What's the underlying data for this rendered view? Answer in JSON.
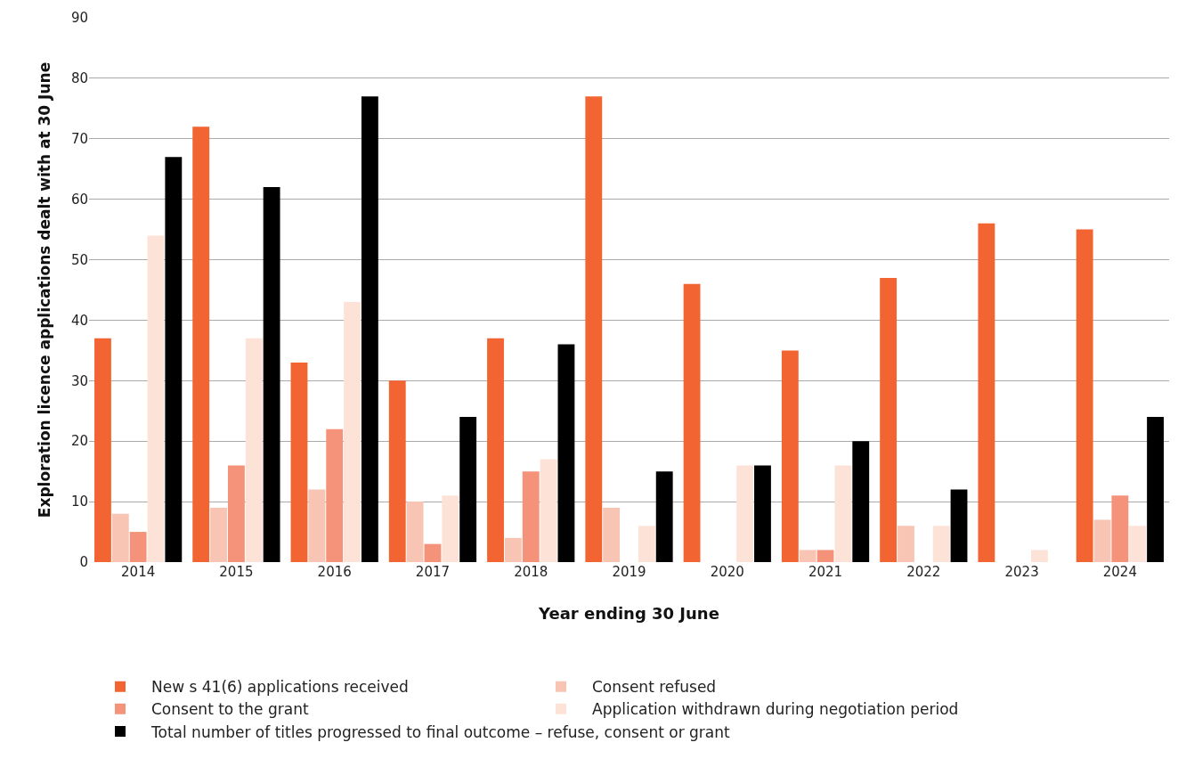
{
  "chart_data": {
    "type": "bar",
    "xlabel": "Year ending 30 June",
    "ylabel": "Exploration licence applications dealt with at 30 June",
    "categories": [
      "2014",
      "2015",
      "2016",
      "2017",
      "2018",
      "2019",
      "2020",
      "2021",
      "2022",
      "2023",
      "2024"
    ],
    "series": [
      {
        "name": "New s 41(6) applications received",
        "color": "#f26532",
        "values": [
          37,
          72,
          33,
          30,
          37,
          77,
          46,
          35,
          47,
          56,
          55
        ]
      },
      {
        "name": "Consent refused",
        "color": "#f8c4b4",
        "values": [
          8,
          9,
          12,
          10,
          4,
          9,
          0,
          2,
          6,
          0,
          7
        ]
      },
      {
        "name": "Consent to the grant",
        "color": "#f4937a",
        "values": [
          5,
          16,
          22,
          3,
          15,
          0,
          0,
          2,
          0,
          0,
          11
        ]
      },
      {
        "name": "Application withdrawn during negotiation period",
        "color": "#fde3d7",
        "values": [
          54,
          37,
          43,
          11,
          17,
          6,
          16,
          16,
          6,
          2,
          6
        ]
      },
      {
        "name": "Total number of titles progressed to final outcome – refuse, consent or grant",
        "color": "#000000",
        "values": [
          67,
          62,
          77,
          24,
          36,
          15,
          16,
          20,
          12,
          0,
          24
        ]
      }
    ],
    "ylim": [
      0,
      90
    ],
    "yticks": [
      0,
      10,
      20,
      30,
      40,
      50,
      60,
      70,
      80,
      90
    ],
    "grid": "y",
    "legend": "bottom"
  }
}
